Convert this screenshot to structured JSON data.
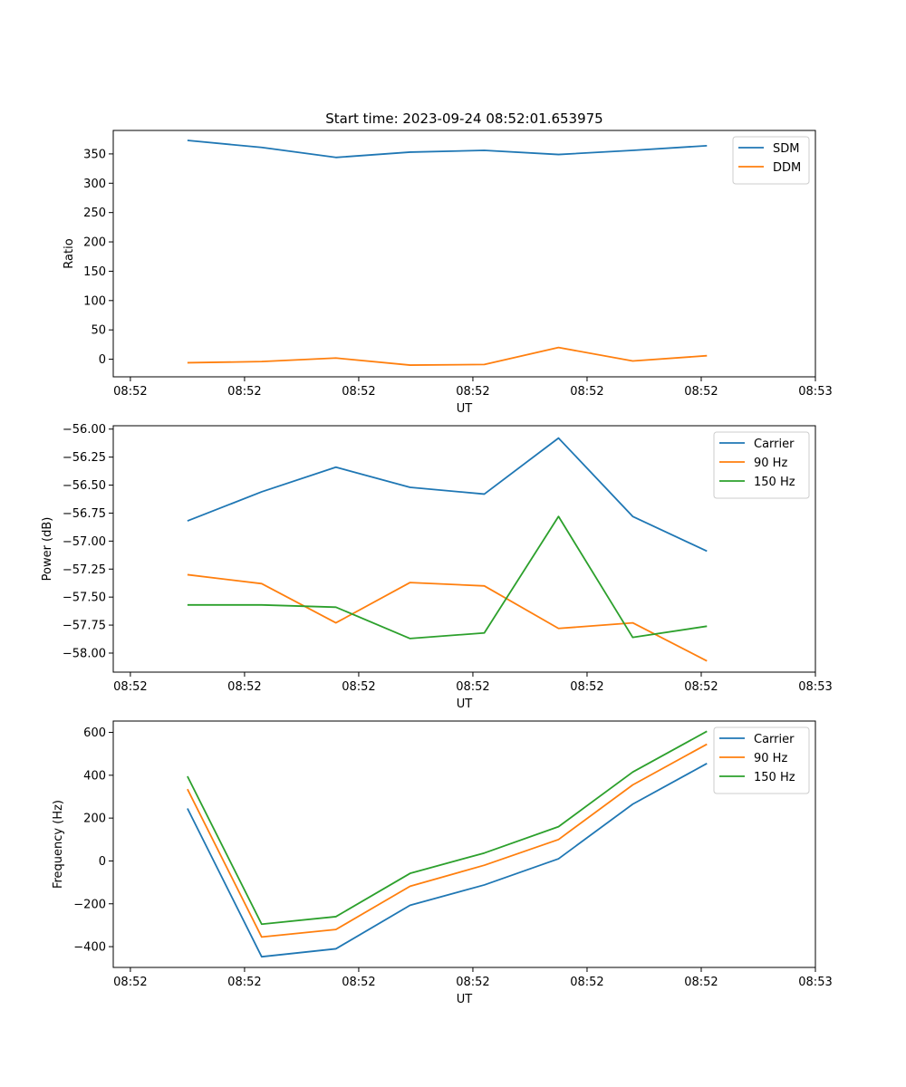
{
  "chart_data": [
    {
      "type": "line",
      "title": "Start time: 2023-09-24 08:52:01.653975",
      "xlabel": "UT",
      "ylabel": "Ratio",
      "x": [
        0.5,
        1.15,
        1.8,
        2.45,
        3.1,
        3.75,
        4.4,
        5.05
      ],
      "xlim": [
        -0.15,
        6.0
      ],
      "x_ticks": [
        0,
        1,
        2,
        3,
        4,
        5,
        6
      ],
      "x_tick_labels": [
        "08:52",
        "08:52",
        "08:52",
        "08:52",
        "08:52",
        "08:52",
        "08:53"
      ],
      "ylim": [
        -30,
        390
      ],
      "y_ticks": [
        0,
        50,
        100,
        150,
        200,
        250,
        300,
        350
      ],
      "legend_position": "top-right",
      "series": [
        {
          "name": "SDM",
          "color": "#1f77b4",
          "values": [
            373,
            361,
            344,
            353,
            356,
            349,
            356,
            364
          ]
        },
        {
          "name": "DDM",
          "color": "#ff7f0e",
          "values": [
            -6,
            -4,
            2,
            -10,
            -9,
            20,
            -3,
            6
          ]
        }
      ]
    },
    {
      "type": "line",
      "title": "",
      "xlabel": "UT",
      "ylabel": "Power (dB)",
      "x": [
        0.5,
        1.15,
        1.8,
        2.45,
        3.1,
        3.75,
        4.4,
        5.05
      ],
      "xlim": [
        -0.15,
        6.0
      ],
      "x_ticks": [
        0,
        1,
        2,
        3,
        4,
        5,
        6
      ],
      "x_tick_labels": [
        "08:52",
        "08:52",
        "08:52",
        "08:52",
        "08:52",
        "08:52",
        "08:53"
      ],
      "ylim": [
        -58.17,
        -55.97
      ],
      "y_ticks": [
        -56.0,
        -56.25,
        -56.5,
        -56.75,
        -57.0,
        -57.25,
        -57.5,
        -57.75,
        -58.0
      ],
      "y_tick_labels": [
        "−56.00",
        "−56.25",
        "−56.50",
        "−56.75",
        "−57.00",
        "−57.25",
        "−57.50",
        "−57.75",
        "−58.00"
      ],
      "legend_position": "top-right",
      "series": [
        {
          "name": "Carrier",
          "color": "#1f77b4",
          "values": [
            -56.82,
            -56.56,
            -56.34,
            -56.52,
            -56.58,
            -56.08,
            -56.78,
            -57.09
          ]
        },
        {
          "name": "90 Hz",
          "color": "#ff7f0e",
          "values": [
            -57.3,
            -57.38,
            -57.73,
            -57.37,
            -57.4,
            -57.78,
            -57.73,
            -58.07
          ]
        },
        {
          "name": "150 Hz",
          "color": "#2ca02c",
          "values": [
            -57.57,
            -57.57,
            -57.59,
            -57.87,
            -57.82,
            -56.78,
            -57.86,
            -57.76
          ]
        }
      ]
    },
    {
      "type": "line",
      "title": "",
      "xlabel": "UT",
      "ylabel": "Frequency (Hz)",
      "x": [
        0.5,
        1.15,
        1.8,
        2.45,
        3.1,
        3.75,
        4.4,
        5.05
      ],
      "xlim": [
        -0.15,
        6.0
      ],
      "x_ticks": [
        0,
        1,
        2,
        3,
        4,
        5,
        6
      ],
      "x_tick_labels": [
        "08:52",
        "08:52",
        "08:52",
        "08:52",
        "08:52",
        "08:52",
        "08:53"
      ],
      "ylim": [
        -497,
        653
      ],
      "y_ticks": [
        600,
        400,
        200,
        0,
        -200,
        -400
      ],
      "y_tick_labels": [
        "600",
        "400",
        "200",
        "0",
        "−200",
        "−400"
      ],
      "legend_position": "top-right",
      "series": [
        {
          "name": "Carrier",
          "color": "#1f77b4",
          "values": [
            245,
            -447,
            -410,
            -207,
            -112,
            10,
            265,
            455
          ]
        },
        {
          "name": "90 Hz",
          "color": "#ff7f0e",
          "values": [
            335,
            -355,
            -320,
            -118,
            -20,
            100,
            355,
            545
          ]
        },
        {
          "name": "150 Hz",
          "color": "#2ca02c",
          "values": [
            395,
            -295,
            -260,
            -58,
            37,
            160,
            415,
            605
          ]
        }
      ]
    }
  ]
}
